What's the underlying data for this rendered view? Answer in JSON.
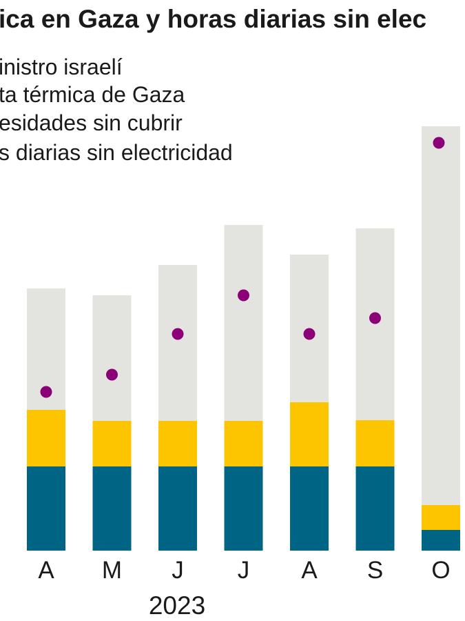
{
  "chart_data": {
    "type": "bar",
    "stacked": true,
    "title": "ica en Gaza y horas diarias sin elec",
    "legend": [
      "inistro israelí",
      "ta térmica de Gaza",
      "esidades sin cubrir",
      "s diarias sin electricidad"
    ],
    "categories": [
      "A",
      "M",
      "J",
      "J",
      "A",
      "S",
      "O"
    ],
    "year_label": "2023",
    "series": [
      {
        "name": "inistro israelí",
        "color": "#006485",
        "values": [
          122,
          122,
          122,
          122,
          122,
          122,
          30
        ]
      },
      {
        "name": "ta térmica de Gaza",
        "color": "#fdc400",
        "values": [
          82,
          66,
          66,
          66,
          93,
          67,
          36
        ]
      },
      {
        "name": "esidades sin cubrir",
        "color": "#e3e3df",
        "values": [
          176,
          182,
          226,
          284,
          214,
          278,
          549
        ]
      }
    ],
    "dots": {
      "name": "s diarias sin electricidad",
      "color": "#8b0077",
      "values": [
        230,
        255,
        314,
        370,
        314,
        337,
        591
      ]
    },
    "ylim": [
      0,
      620
    ]
  }
}
